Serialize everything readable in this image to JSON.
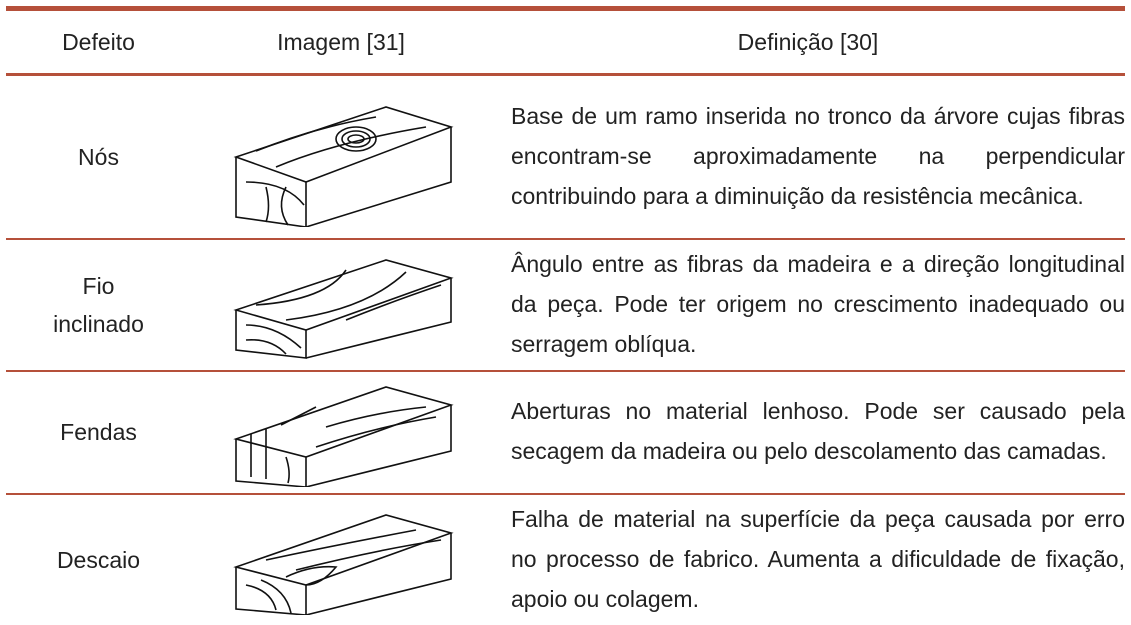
{
  "table": {
    "header": [
      "Defeito",
      "Imagem [31]",
      "Definição [30]"
    ],
    "rows": [
      {
        "defect": "Nós",
        "definition": "Base de um ramo inserida no tronco da árvore cujas fibras encontram-se aproximadamente na perpendicular contribuindo para a diminuição da resistência mecânica."
      },
      {
        "defect": "Fio inclinado",
        "definition": "Ângulo entre as fibras da madeira e a direção longitudinal da peça. Pode ter origem no crescimento inadequado ou serragem oblíqua."
      },
      {
        "defect": "Fendas",
        "definition": "Aberturas no material lenhoso. Pode ser causado pela secagem da madeira ou pelo descolamento das camadas."
      },
      {
        "defect": "Descaio",
        "definition": "Falha de material na superfície da peça causada por erro no processo de fabrico. Aumenta a dificuldade de fixação, apoio ou colagem."
      }
    ]
  }
}
